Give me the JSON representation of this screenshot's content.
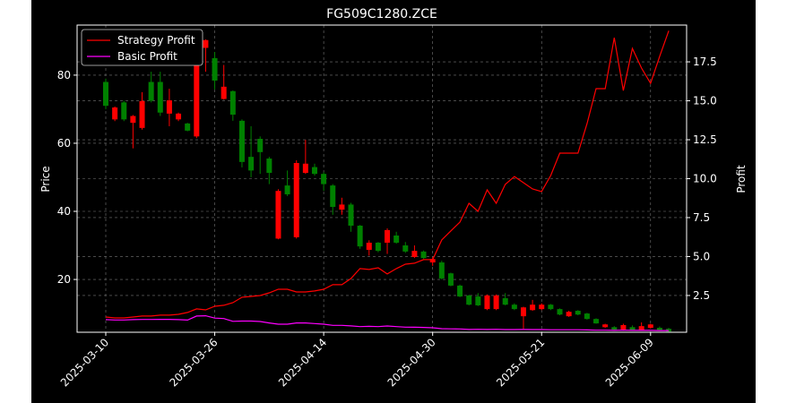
{
  "chart_data": {
    "type": "candlestick",
    "title": "FG509C1280.ZCE",
    "ylabel": "Price",
    "y2label": "Profit",
    "categories": [
      "2025-03-10",
      null,
      null,
      null,
      null,
      null,
      null,
      null,
      null,
      null,
      null,
      null,
      "2025-03-26",
      null,
      null,
      null,
      null,
      null,
      null,
      null,
      null,
      null,
      null,
      null,
      "2025-04-14",
      null,
      null,
      null,
      null,
      null,
      null,
      null,
      null,
      null,
      null,
      null,
      "2025-04-30",
      null,
      null,
      null,
      null,
      null,
      null,
      null,
      null,
      null,
      null,
      null,
      "2025-05-21",
      null,
      null,
      null,
      null,
      null,
      null,
      null,
      null,
      null,
      null,
      null,
      "2025-06-09",
      null,
      null
    ],
    "candles": {
      "up_color": "#ff0000",
      "down_color": "#008000",
      "open": [
        78,
        67,
        72,
        66,
        64.5,
        78,
        78,
        68.7,
        67,
        65.8,
        62,
        88,
        85,
        73,
        75.3,
        66.6,
        56,
        61.3,
        55.5,
        32,
        47.6,
        32.4,
        51.3,
        53,
        51,
        47.6,
        40.5,
        42,
        35.8,
        28.7,
        30.8,
        30.8,
        32.9,
        30,
        26.6,
        28.2,
        25,
        25,
        21.8,
        18.2,
        15.3,
        15,
        11.3,
        11.3,
        14.5,
        12.6,
        9.2,
        11,
        11.3,
        12.6,
        11.3,
        9.2,
        10.8,
        10,
        8.4,
        6,
        6,
        5.3,
        6,
        5,
        5.8,
        5.8,
        5.5
      ],
      "high": [
        79,
        70.8,
        72.5,
        68.3,
        75,
        81,
        81,
        76,
        69,
        66,
        87,
        90.5,
        86.8,
        83,
        75.5,
        67,
        65,
        62,
        56,
        46.5,
        52,
        55,
        61,
        54,
        51.5,
        48,
        44,
        42.5,
        36,
        31.5,
        31,
        35,
        34,
        31,
        30,
        28.5,
        26.5,
        25.5,
        22,
        18.5,
        15.5,
        16,
        15.6,
        15.6,
        16,
        13,
        12,
        14,
        13,
        12.8,
        11.5,
        10.8,
        11,
        10.2,
        8.6,
        7,
        6.3,
        7,
        6.5,
        7.4,
        7,
        6.2,
        5.8
      ],
      "low": [
        70,
        66.5,
        66.5,
        58.5,
        64,
        72,
        68,
        65,
        66.5,
        63.5,
        61.5,
        81,
        75.8,
        72.8,
        66.6,
        52.9,
        50,
        51,
        48,
        31.8,
        44.5,
        32,
        51,
        50.5,
        46,
        39,
        39,
        34,
        29,
        27,
        28,
        27.5,
        30.5,
        27.8,
        26.3,
        26,
        24,
        20,
        18,
        14.8,
        12.4,
        12.2,
        11,
        11,
        12.4,
        11,
        5.5,
        10.8,
        11,
        11,
        9.5,
        9,
        9.5,
        8.2,
        7,
        5.8,
        5.1,
        5.1,
        4.9,
        4.9,
        5.6,
        4.9,
        4.6
      ],
      "close": [
        71,
        70.5,
        67,
        68,
        72.4,
        72.5,
        69,
        72.6,
        68.7,
        63.7,
        86.3,
        90.3,
        78.4,
        76.6,
        68.4,
        54.5,
        52,
        57.4,
        51.3,
        46,
        45,
        54.2,
        54,
        51,
        48,
        41.3,
        42,
        35.8,
        29.7,
        30.8,
        28.4,
        34.5,
        30.8,
        28.2,
        28.4,
        26.3,
        26,
        20.3,
        18.2,
        15,
        12.6,
        12.4,
        15.3,
        15.3,
        12.6,
        11.3,
        11.8,
        12.6,
        12.6,
        11.3,
        9.7,
        10.5,
        9.7,
        8.4,
        7.1,
        6.8,
        5.3,
        6.6,
        5,
        6.3,
        6.8,
        5,
        4.7
      ]
    },
    "series": [
      {
        "name": "Strategy Profit",
        "color": "#ff0000",
        "axis": "y2",
        "values": [
          1.12,
          1.06,
          1.06,
          1.12,
          1.18,
          1.18,
          1.24,
          1.24,
          1.29,
          1.41,
          1.64,
          1.58,
          1.81,
          1.87,
          2.04,
          2.39,
          2.44,
          2.5,
          2.67,
          2.9,
          2.9,
          2.73,
          2.73,
          2.79,
          2.9,
          3.19,
          3.19,
          3.59,
          4.23,
          4.17,
          4.28,
          3.88,
          4.23,
          4.51,
          4.57,
          4.8,
          4.8,
          6.06,
          6.64,
          7.21,
          8.42,
          7.9,
          9.28,
          8.42,
          9.63,
          10.14,
          9.74,
          9.34,
          9.17,
          10.2,
          11.64,
          11.64,
          11.64,
          13.53,
          15.78,
          15.78,
          19.05,
          15.66,
          18.36,
          17.1,
          16.12,
          17.84,
          19.5
        ]
      },
      {
        "name": "Basic Profit",
        "color": "#ff00ff",
        "axis": "y2",
        "values": [
          0.95,
          0.93,
          0.93,
          0.95,
          0.96,
          0.96,
          0.97,
          0.97,
          0.95,
          0.92,
          1.18,
          1.2,
          1.05,
          1.02,
          0.84,
          0.86,
          0.86,
          0.83,
          0.74,
          0.66,
          0.66,
          0.74,
          0.74,
          0.7,
          0.66,
          0.58,
          0.58,
          0.55,
          0.5,
          0.52,
          0.5,
          0.54,
          0.5,
          0.47,
          0.46,
          0.45,
          0.43,
          0.37,
          0.36,
          0.35,
          0.32,
          0.33,
          0.32,
          0.33,
          0.31,
          0.31,
          0.32,
          0.31,
          0.31,
          0.3,
          0.3,
          0.3,
          0.3,
          0.29,
          0.27,
          0.27,
          0.26,
          0.27,
          0.26,
          0.26,
          0.26,
          0.25,
          0.25
        ]
      }
    ],
    "ylim": [
      4.5,
      94.7
    ],
    "yticks": [
      20,
      40,
      60,
      80
    ],
    "y2lim": [
      0.14,
      19.86
    ],
    "y2ticks": [
      2.5,
      {
        "value": 5,
        "label": "5.0"
      },
      7.5,
      {
        "value": 10,
        "label": "10.0"
      },
      12.5,
      {
        "value": 15,
        "label": "15.0"
      },
      17.5
    ],
    "grid": true,
    "legend": "upper-left"
  }
}
